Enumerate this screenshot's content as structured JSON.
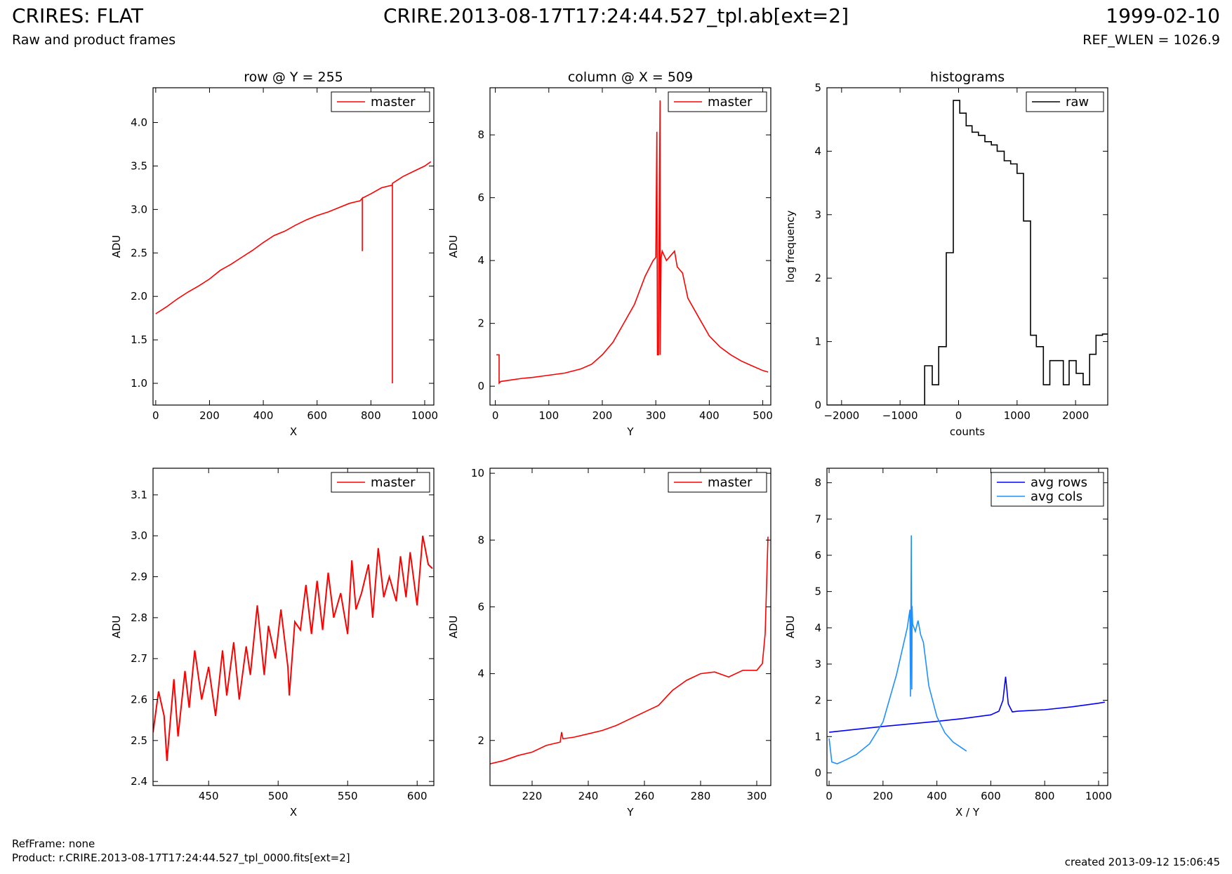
{
  "header": {
    "title_left": "CRIRES: FLAT",
    "subtitle_left": "Raw and product frames",
    "title_center": "CRIRE.2013-08-17T17:24:44.527_tpl.ab[ext=2]",
    "date_right": "1999-02-10",
    "subtitle_right": "REF_WLEN = 1026.9"
  },
  "footer": {
    "ref_frame": "RefFrame: none",
    "product": "Product: r.CRIRE.2013-08-17T17:24:44.527_tpl_0000.fits[ext=2]",
    "created": "created 2013-09-12 15:06:45"
  },
  "colors": {
    "master": "#ff0000",
    "raw": "#000000",
    "avg_rows": "#0000ff",
    "avg_cols": "#1e90ff"
  },
  "chart_data": [
    {
      "type": "line",
      "title": "row @ Y = 255",
      "xlabel": "X",
      "ylabel": "ADU",
      "xlim": [
        -10,
        1034
      ],
      "ylim": [
        0.75,
        4.4
      ],
      "xticks": [
        0,
        200,
        400,
        600,
        800,
        1000
      ],
      "yticks": [
        1.0,
        1.5,
        2.0,
        2.5,
        3.0,
        3.5,
        4.0
      ],
      "ytick_labels": [
        "1.0",
        "1.5",
        "2.0",
        "2.5",
        "3.0",
        "3.5",
        "4.0"
      ],
      "legend_position": "top-right",
      "series": [
        {
          "name": "master",
          "color": "#ff0000",
          "x": [
            0,
            40,
            80,
            120,
            160,
            200,
            240,
            280,
            320,
            360,
            400,
            440,
            480,
            520,
            560,
            600,
            640,
            680,
            720,
            760,
            768,
            768,
            768,
            800,
            840,
            880,
            880,
            880,
            880,
            920,
            960,
            1000,
            1023
          ],
          "y": [
            1.8,
            1.88,
            1.97,
            2.05,
            2.12,
            2.2,
            2.3,
            2.37,
            2.45,
            2.53,
            2.62,
            2.7,
            2.75,
            2.82,
            2.88,
            2.93,
            2.97,
            3.02,
            3.07,
            3.1,
            3.13,
            2.52,
            3.13,
            3.18,
            3.25,
            3.28,
            1.0,
            3.28,
            3.3,
            3.38,
            3.44,
            3.5,
            3.55
          ]
        }
      ]
    },
    {
      "type": "line",
      "title": "column @ X = 509",
      "xlabel": "Y",
      "ylabel": "ADU",
      "xlim": [
        -10,
        515
      ],
      "ylim": [
        -0.6,
        9.5
      ],
      "xticks": [
        0,
        100,
        200,
        300,
        400,
        500
      ],
      "yticks": [
        0,
        2,
        4,
        6,
        8
      ],
      "ytick_labels": [
        "0",
        "2",
        "4",
        "6",
        "8"
      ],
      "legend_position": "top-right",
      "series": [
        {
          "name": "master",
          "color": "#ff0000",
          "x": [
            2,
            7,
            7,
            10,
            30,
            50,
            70,
            100,
            130,
            160,
            180,
            200,
            220,
            240,
            260,
            280,
            295,
            300,
            302,
            303,
            305,
            306,
            308,
            308,
            310,
            312,
            320,
            330,
            335,
            340,
            350,
            360,
            380,
            400,
            420,
            440,
            460,
            480,
            500,
            510
          ],
          "y": [
            1.0,
            1.0,
            0.1,
            0.15,
            0.2,
            0.25,
            0.28,
            0.35,
            0.42,
            0.55,
            0.7,
            1.0,
            1.4,
            2.0,
            2.6,
            3.5,
            4.0,
            4.1,
            8.1,
            1.0,
            1.0,
            4.5,
            9.1,
            1.0,
            4.1,
            4.3,
            4.0,
            4.2,
            4.3,
            3.8,
            3.6,
            2.8,
            2.2,
            1.6,
            1.25,
            1.0,
            0.8,
            0.65,
            0.5,
            0.45
          ]
        }
      ]
    },
    {
      "type": "line",
      "title": "histograms",
      "xlabel": "counts",
      "ylabel": "log frequency",
      "xlim": [
        -2250,
        2550
      ],
      "ylim": [
        0,
        5
      ],
      "xticks": [
        -2000,
        -1000,
        0,
        1000,
        2000
      ],
      "xtick_labels": [
        "−2000",
        "−1000",
        "0",
        "1000",
        "2000"
      ],
      "yticks": [
        0,
        1,
        2,
        3,
        4,
        5
      ],
      "ytick_labels": [
        "0",
        "1",
        "2",
        "3",
        "4",
        "5"
      ],
      "legend_position": "top-right",
      "series": [
        {
          "name": "raw",
          "color": "#000000",
          "x": [
            -2250,
            -580,
            -580,
            -450,
            -450,
            -340,
            -340,
            -210,
            -210,
            -90,
            -90,
            20,
            20,
            130,
            130,
            230,
            230,
            340,
            340,
            450,
            450,
            560,
            560,
            660,
            660,
            780,
            780,
            890,
            890,
            1000,
            1000,
            1110,
            1110,
            1230,
            1230,
            1330,
            1330,
            1450,
            1450,
            1560,
            1560,
            1790,
            1790,
            1890,
            1890,
            2010,
            2010,
            2130,
            2130,
            2240,
            2240,
            2350,
            2350,
            2460,
            2460,
            2550
          ],
          "y": [
            0,
            0,
            0.62,
            0.62,
            0.32,
            0.32,
            0.92,
            0.92,
            2.4,
            2.4,
            4.8,
            4.8,
            4.6,
            4.6,
            4.4,
            4.4,
            4.3,
            4.3,
            4.25,
            4.25,
            4.15,
            4.15,
            4.1,
            4.1,
            4.0,
            4.0,
            3.85,
            3.85,
            3.8,
            3.8,
            3.65,
            3.65,
            2.9,
            2.9,
            1.1,
            1.1,
            0.92,
            0.92,
            0.32,
            0.32,
            0.7,
            0.7,
            0.32,
            0.32,
            0.7,
            0.7,
            0.5,
            0.5,
            0.32,
            0.32,
            0.8,
            0.8,
            1.1,
            1.1,
            1.12,
            1.12
          ]
        }
      ]
    },
    {
      "type": "line",
      "title": "",
      "xlabel": "X",
      "ylabel": "ADU",
      "xlim": [
        410,
        612
      ],
      "ylim": [
        2.39,
        3.165
      ],
      "xticks": [
        450,
        500,
        550,
        600
      ],
      "yticks": [
        2.4,
        2.5,
        2.6,
        2.7,
        2.8,
        2.9,
        3.0,
        3.1
      ],
      "ytick_labels": [
        "2.4",
        "2.5",
        "2.6",
        "2.7",
        "2.8",
        "2.9",
        "3.0",
        "3.1"
      ],
      "legend_position": "top-right",
      "series": [
        {
          "name": "master",
          "color": "#ff0000",
          "x": [
            410,
            414,
            418,
            420,
            425,
            428,
            433,
            436,
            440,
            445,
            450,
            455,
            460,
            463,
            468,
            472,
            477,
            480,
            485,
            490,
            493,
            498,
            502,
            507,
            508,
            512,
            516,
            520,
            524,
            528,
            532,
            536,
            540,
            545,
            550,
            553,
            556,
            560,
            565,
            568,
            572,
            576,
            580,
            585,
            588,
            592,
            595,
            600,
            604,
            608,
            611
          ],
          "y": [
            2.52,
            2.62,
            2.56,
            2.45,
            2.65,
            2.51,
            2.67,
            2.58,
            2.72,
            2.6,
            2.68,
            2.56,
            2.72,
            2.61,
            2.74,
            2.6,
            2.73,
            2.66,
            2.83,
            2.66,
            2.78,
            2.7,
            2.82,
            2.68,
            2.61,
            2.79,
            2.77,
            2.88,
            2.76,
            2.89,
            2.77,
            2.91,
            2.8,
            2.86,
            2.76,
            2.94,
            2.82,
            2.86,
            2.93,
            2.8,
            2.97,
            2.85,
            2.9,
            2.84,
            2.95,
            2.85,
            2.96,
            2.83,
            3.0,
            2.93,
            2.92
          ]
        }
      ]
    },
    {
      "type": "line",
      "title": "",
      "xlabel": "Y",
      "ylabel": "ADU",
      "xlim": [
        205,
        305
      ],
      "ylim": [
        0.65,
        10.15
      ],
      "xticks": [
        220,
        240,
        260,
        280,
        300
      ],
      "yticks": [
        2,
        4,
        6,
        8,
        10
      ],
      "ytick_labels": [
        "2",
        "4",
        "6",
        "8",
        "10"
      ],
      "legend_position": "top-right",
      "series": [
        {
          "name": "master",
          "color": "#ff0000",
          "x": [
            205,
            210,
            215,
            220,
            225,
            230,
            230.5,
            231,
            235,
            240,
            245,
            250,
            255,
            260,
            265,
            270,
            275,
            280,
            285,
            290,
            295,
            300,
            302,
            303,
            304
          ],
          "y": [
            1.3,
            1.4,
            1.55,
            1.65,
            1.85,
            1.95,
            2.25,
            2.05,
            2.1,
            2.2,
            2.3,
            2.45,
            2.65,
            2.85,
            3.05,
            3.5,
            3.8,
            4.0,
            4.05,
            3.9,
            4.1,
            4.1,
            4.3,
            5.2,
            8.1
          ]
        }
      ]
    },
    {
      "type": "line",
      "title": "",
      "xlabel": "X / Y",
      "ylabel": "ADU",
      "xlim": [
        -8,
        1034
      ],
      "ylim": [
        -0.35,
        8.4
      ],
      "xticks": [
        0,
        200,
        400,
        600,
        800,
        1000
      ],
      "yticks": [
        0,
        1,
        2,
        3,
        4,
        5,
        6,
        7,
        8
      ],
      "ytick_labels": [
        "0",
        "1",
        "2",
        "3",
        "4",
        "5",
        "6",
        "7",
        "8"
      ],
      "legend_position": "top-right",
      "series": [
        {
          "name": "avg rows",
          "color": "#0000ff",
          "x": [
            0,
            100,
            200,
            300,
            400,
            500,
            600,
            630,
            645,
            655,
            665,
            680,
            700,
            800,
            900,
            1000,
            1023
          ],
          "y": [
            1.12,
            1.2,
            1.28,
            1.35,
            1.42,
            1.5,
            1.6,
            1.7,
            2.0,
            2.65,
            1.9,
            1.68,
            1.7,
            1.74,
            1.82,
            1.92,
            1.95
          ]
        },
        {
          "name": "avg cols",
          "color": "#1e90ff",
          "x": [
            0,
            10,
            30,
            60,
            100,
            150,
            200,
            250,
            290,
            300,
            302,
            305,
            307,
            308,
            310,
            320,
            330,
            340,
            350,
            370,
            400,
            430,
            460,
            490,
            510
          ],
          "y": [
            0.95,
            0.3,
            0.25,
            0.35,
            0.5,
            0.8,
            1.4,
            2.7,
            4.0,
            4.5,
            2.1,
            6.55,
            2.3,
            4.6,
            4.1,
            3.9,
            4.2,
            3.8,
            3.6,
            2.4,
            1.55,
            1.1,
            0.85,
            0.7,
            0.6
          ]
        }
      ]
    }
  ]
}
